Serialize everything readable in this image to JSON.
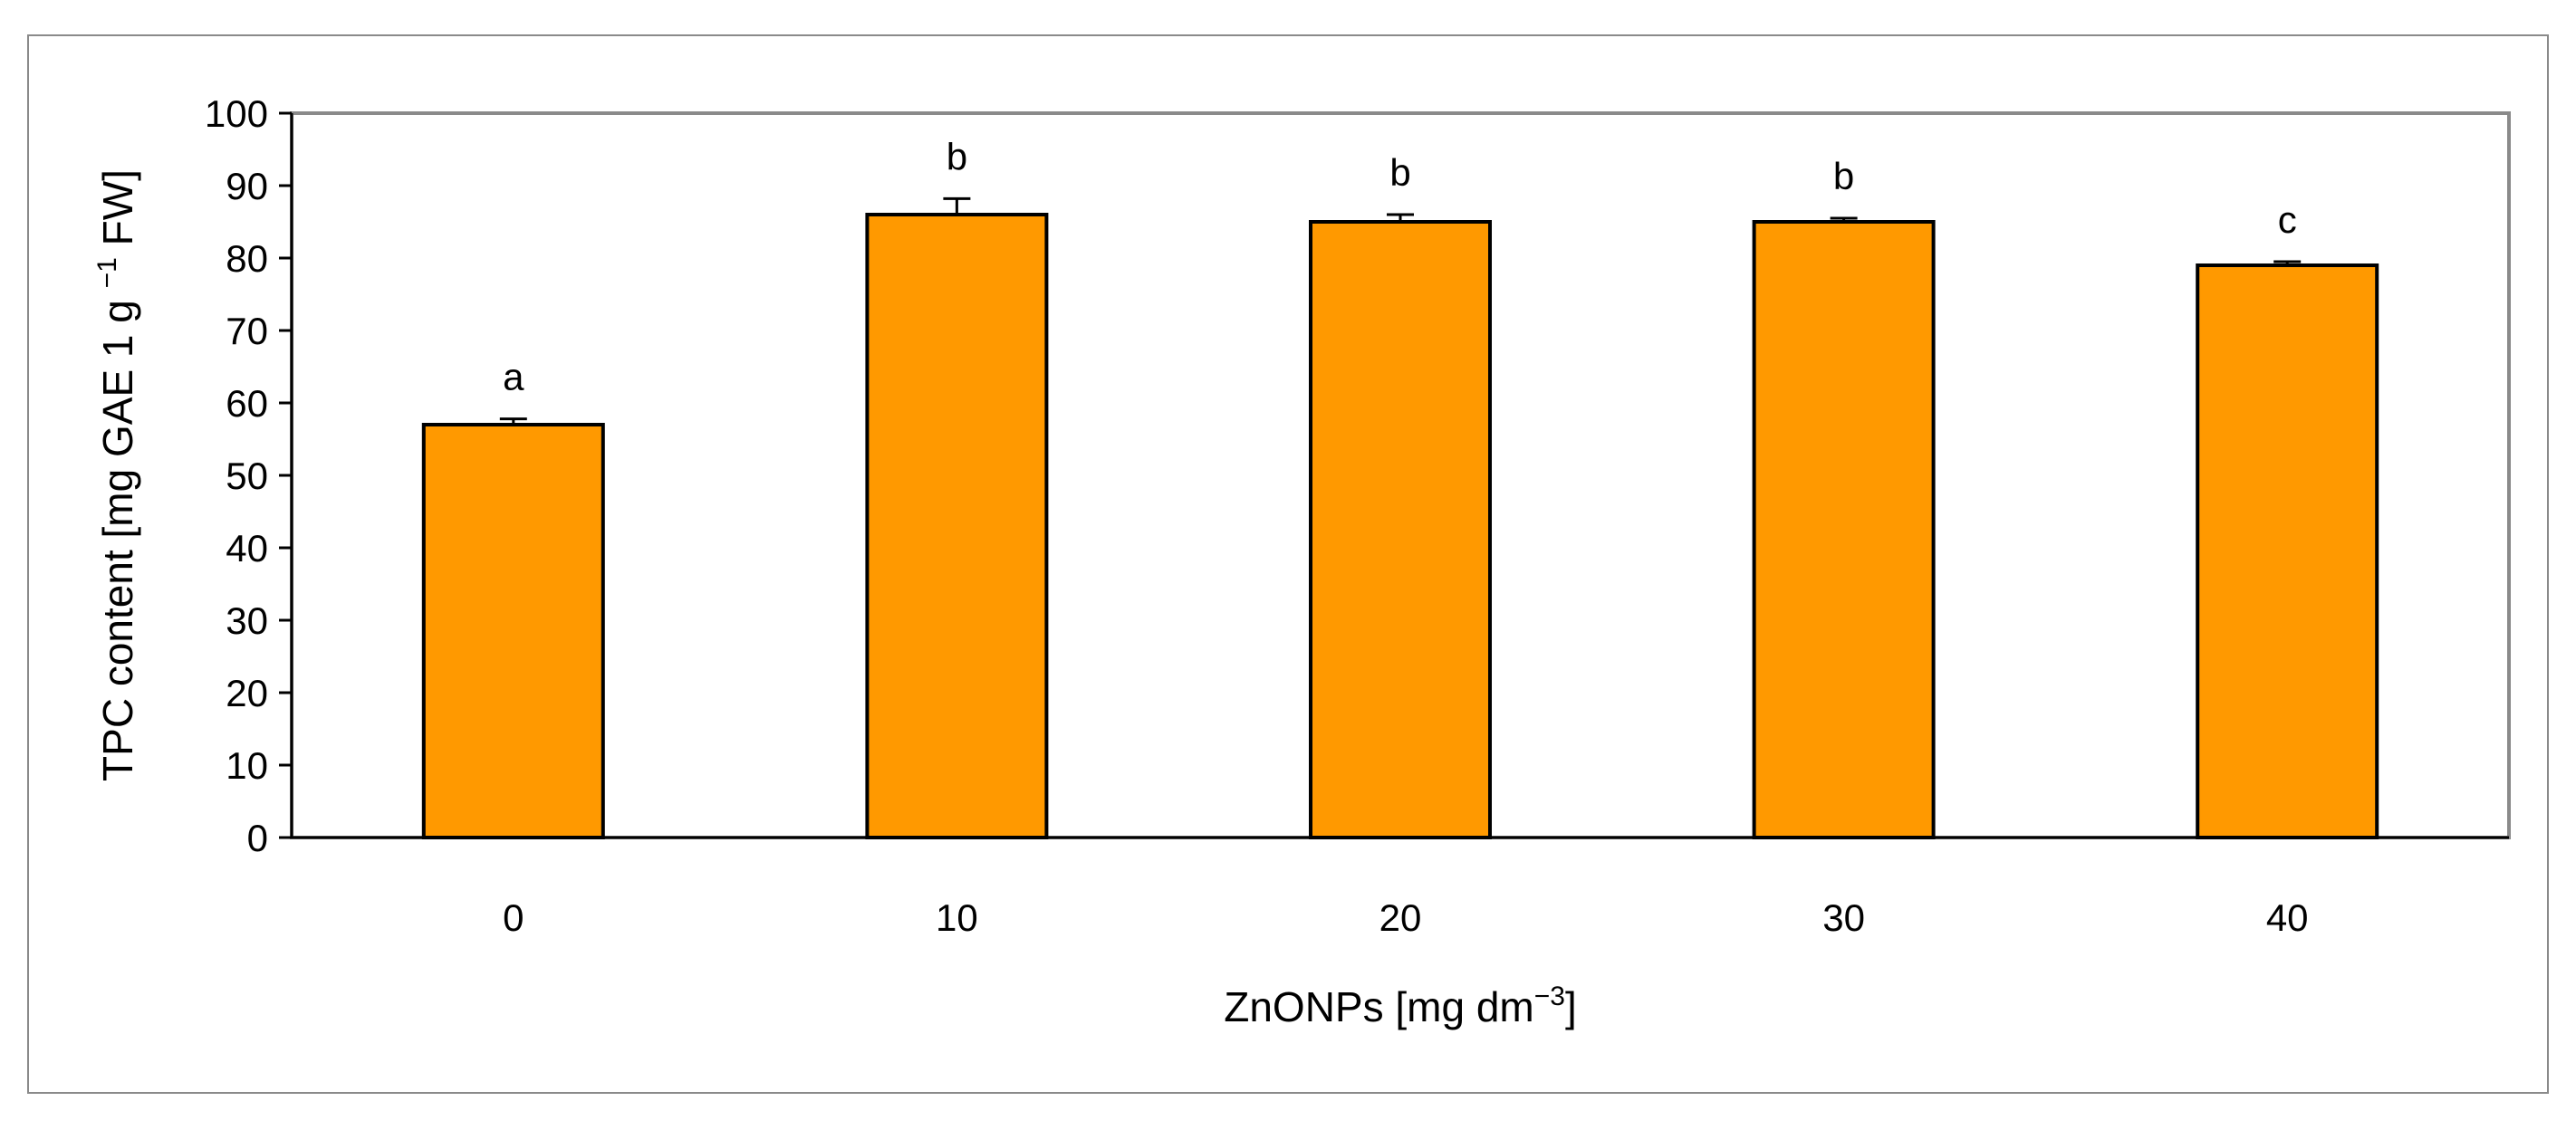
{
  "chart_data": {
    "type": "bar",
    "categories": [
      "0",
      "10",
      "20",
      "30",
      "40"
    ],
    "values": [
      57,
      86,
      85,
      85,
      79
    ],
    "errors": [
      0.8,
      2.2,
      1.0,
      0.5,
      0.5
    ],
    "significance_letters": [
      "a",
      "b",
      "b",
      "b",
      "c"
    ],
    "xlabel": {
      "main": "ZnONPs [mg dm",
      "sup": "−3",
      "tail": "]"
    },
    "ylabel": {
      "main": "TPC content [mg GAE 1 g ",
      "sup": "−1",
      "tail": " FW]"
    },
    "ylim": [
      0,
      100
    ],
    "yticks": [
      0,
      10,
      20,
      30,
      40,
      50,
      60,
      70,
      80,
      90,
      100
    ],
    "grid": false,
    "legend": "none",
    "bar_color": "#ff9900",
    "bar_edge_color": "#000000",
    "plot_border_color": "#8a8a8a"
  }
}
